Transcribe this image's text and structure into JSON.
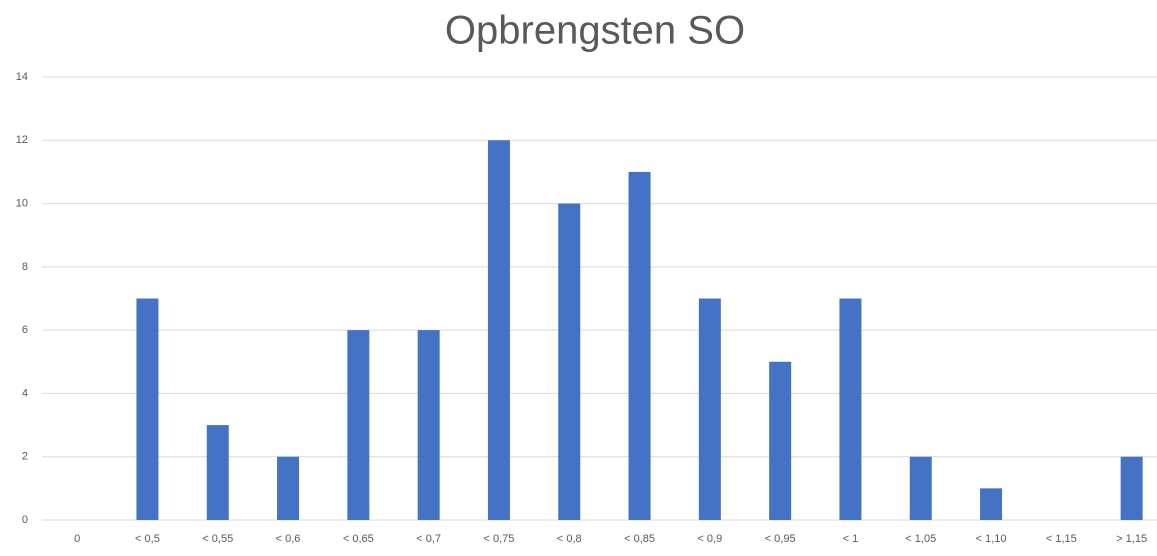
{
  "chart_data": {
    "type": "bar",
    "title": "Opbrengsten SO",
    "categories": [
      "0",
      "< 0,5",
      "< 0,55",
      "< 0,6",
      "< 0,65",
      "< 0,7",
      "< 0,75",
      "< 0,8",
      "< 0,85",
      "< 0,9",
      "< 0,95",
      "< 1",
      "< 1,05",
      "< 1,10",
      "< 1,15",
      "> 1,15"
    ],
    "values": [
      0,
      7,
      3,
      2,
      6,
      6,
      12,
      10,
      11,
      7,
      5,
      7,
      2,
      1,
      0,
      2
    ],
    "color": "#4472c4",
    "ylim": [
      0,
      14
    ],
    "yticks": [
      0,
      2,
      4,
      6,
      8,
      10,
      12,
      14
    ],
    "grid": true
  }
}
